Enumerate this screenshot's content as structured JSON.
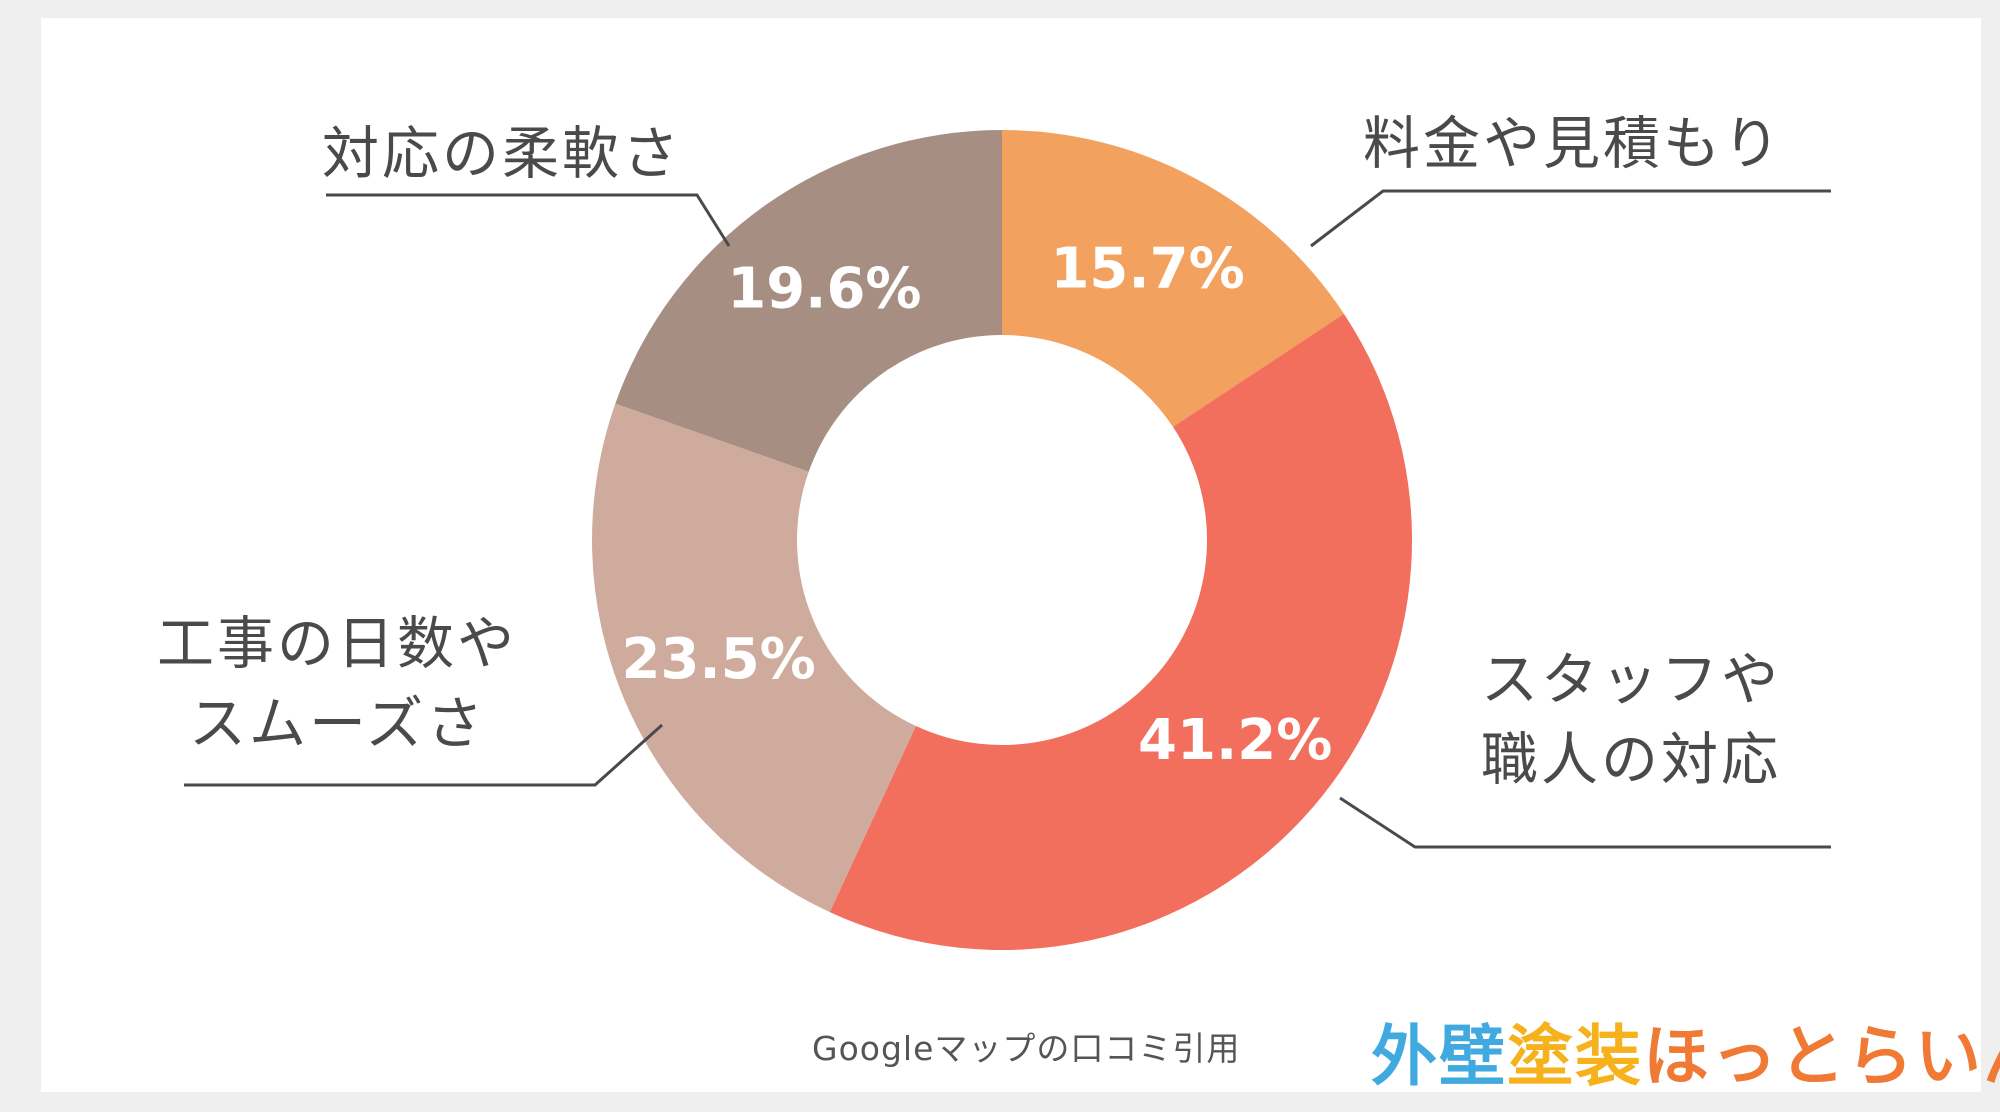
{
  "chart_data": {
    "type": "pie",
    "donut": true,
    "slices": [
      {
        "label": "料金や見積もり",
        "value": 15.7,
        "value_label": "15.7%",
        "color": "#f2a15e"
      },
      {
        "label": "スタッフや\n職人の対応",
        "value": 41.2,
        "value_label": "41.2%",
        "color": "#f26f5e"
      },
      {
        "label": "工事の日数や\nスムーズさ",
        "value": 23.5,
        "value_label": "23.5%",
        "color": "#cfab9d"
      },
      {
        "label": "対応の柔軟さ",
        "value": 19.6,
        "value_label": "19.6%",
        "color": "#a78e82"
      }
    ],
    "legend": "none"
  },
  "labels": {
    "fees": [
      "料金や見積もり"
    ],
    "staff": [
      "スタッフや",
      "職人の対応"
    ],
    "days": [
      "工事の日数や",
      "スムーズさ"
    ],
    "flex": [
      "対応の柔軟さ"
    ]
  },
  "source_note": "Googleマップの口コミ引用",
  "logo": {
    "parts": [
      {
        "text": "外壁",
        "color": "#3fa9e0"
      },
      {
        "text": "塗装",
        "color": "#f5b21c"
      },
      {
        "text": "ほっとらいん",
        "color": "#f07a35"
      }
    ]
  }
}
